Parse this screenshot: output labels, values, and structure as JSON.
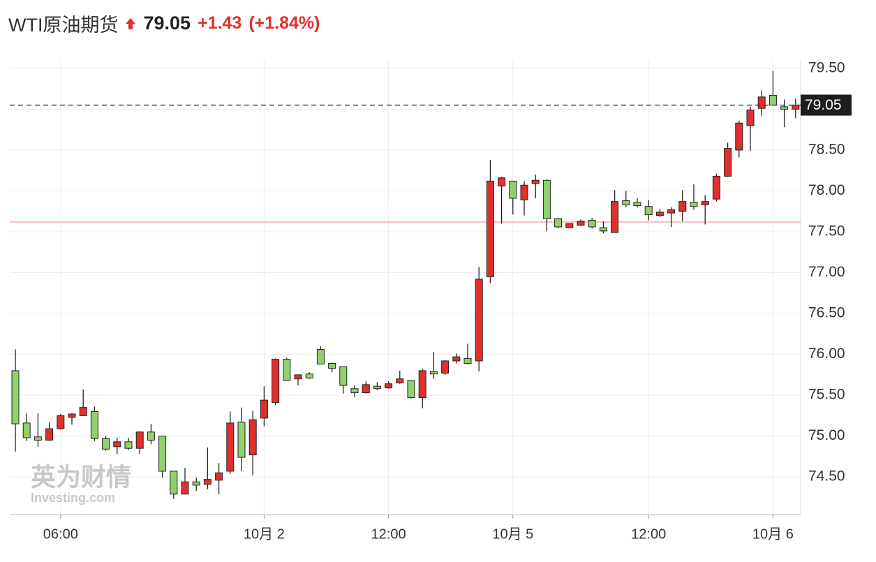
{
  "header": {
    "title": "WTI原油期货",
    "price": "79.05",
    "change": "+1.43",
    "change_pct": "(+1.84%)"
  },
  "watermark": {
    "cn": "英为财情",
    "en": "Investing.com"
  },
  "chart_data": {
    "type": "candlestick",
    "categories": [
      null,
      null,
      null,
      null,
      "06:00",
      null,
      null,
      null,
      null,
      null,
      null,
      null,
      null,
      null,
      null,
      null,
      null,
      null,
      null,
      null,
      null,
      null,
      "10月 2",
      null,
      null,
      null,
      null,
      null,
      null,
      null,
      null,
      null,
      null,
      "12:00",
      null,
      null,
      null,
      null,
      null,
      null,
      null,
      null,
      null,
      null,
      "10月 5",
      null,
      null,
      null,
      null,
      null,
      null,
      null,
      null,
      null,
      null,
      null,
      "12:00",
      null,
      null,
      null,
      null,
      null,
      null,
      null,
      null,
      null,
      null,
      "10月 6",
      null,
      null
    ],
    "open": [
      75.8,
      75.16,
      74.99,
      74.95,
      75.09,
      75.23,
      75.25,
      75.3,
      74.97,
      74.87,
      74.93,
      74.85,
      75.05,
      75.0,
      74.57,
      74.29,
      74.44,
      74.41,
      74.46,
      74.57,
      75.17,
      74.77,
      75.22,
      75.41,
      75.94,
      75.7,
      75.76,
      76.06,
      75.89,
      75.85,
      75.58,
      75.53,
      75.61,
      75.59,
      75.65,
      75.68,
      75.47,
      75.79,
      75.77,
      75.92,
      75.95,
      75.92,
      76.95,
      78.06,
      78.12,
      77.89,
      78.09,
      78.13,
      77.66,
      77.55,
      77.58,
      77.64,
      77.55,
      77.49,
      77.88,
      77.86,
      77.81,
      77.7,
      77.73,
      77.75,
      77.86,
      77.83,
      77.9,
      78.18,
      78.5,
      78.8,
      79.01,
      79.17,
      79.03,
      79.0
    ],
    "high": [
      76.06,
      75.28,
      75.28,
      75.17,
      75.27,
      75.28,
      75.57,
      75.36,
      75.0,
      74.98,
      74.98,
      75.06,
      75.15,
      75.0,
      74.57,
      74.61,
      74.49,
      74.86,
      74.67,
      75.3,
      75.35,
      75.31,
      75.61,
      75.95,
      75.96,
      75.75,
      75.78,
      76.1,
      75.9,
      75.85,
      75.62,
      75.67,
      75.66,
      75.67,
      75.8,
      75.68,
      75.82,
      76.03,
      75.93,
      76.01,
      76.13,
      77.07,
      78.38,
      78.17,
      78.12,
      78.12,
      78.2,
      78.14,
      77.67,
      77.6,
      77.65,
      77.67,
      77.63,
      78.01,
      78.0,
      77.91,
      77.89,
      77.78,
      77.8,
      78.01,
      78.08,
      77.95,
      78.21,
      78.59,
      78.86,
      79.03,
      79.23,
      79.47,
      79.12,
      79.13
    ],
    "low": [
      74.81,
      74.94,
      74.87,
      74.94,
      75.08,
      75.14,
      75.25,
      74.94,
      74.82,
      74.78,
      74.83,
      74.78,
      74.9,
      74.49,
      74.23,
      74.29,
      74.33,
      74.35,
      74.29,
      74.54,
      74.57,
      74.52,
      75.12,
      75.38,
      75.68,
      75.62,
      75.7,
      75.88,
      75.78,
      75.52,
      75.48,
      75.52,
      75.56,
      75.58,
      75.64,
      75.46,
      75.34,
      75.7,
      75.75,
      75.89,
      75.88,
      75.79,
      76.87,
      77.6,
      77.71,
      77.7,
      77.91,
      77.51,
      77.54,
      77.55,
      77.57,
      77.54,
      77.48,
      77.49,
      77.8,
      77.8,
      77.64,
      77.68,
      77.56,
      77.63,
      77.77,
      77.59,
      77.87,
      78.17,
      78.41,
      78.49,
      78.92,
      79.05,
      78.78,
      78.89
    ],
    "close": [
      75.15,
      74.98,
      74.95,
      75.09,
      75.25,
      75.27,
      75.35,
      74.97,
      74.84,
      74.93,
      74.85,
      75.05,
      74.95,
      74.57,
      74.29,
      74.44,
      74.4,
      74.47,
      74.55,
      75.16,
      74.74,
      75.2,
      75.44,
      75.94,
      75.68,
      75.75,
      75.71,
      75.88,
      75.83,
      75.62,
      75.53,
      75.63,
      75.58,
      75.64,
      75.7,
      75.47,
      75.8,
      75.76,
      75.92,
      75.97,
      75.89,
      76.92,
      78.12,
      78.16,
      77.91,
      78.07,
      78.13,
      77.66,
      77.56,
      77.6,
      77.63,
      77.56,
      77.51,
      77.87,
      77.83,
      77.82,
      77.71,
      77.74,
      77.77,
      77.87,
      77.81,
      77.87,
      78.18,
      78.52,
      78.83,
      78.99,
      79.15,
      79.05,
      79.0,
      79.05
    ],
    "up_color": "#e0302b",
    "down_color": "#8fd16a",
    "last_price": 79.05,
    "previous_close": 77.62,
    "ylim": [
      74.04,
      79.61
    ],
    "yticks": [
      {
        "value": 74.5,
        "label": "74.50"
      },
      {
        "value": 75,
        "label": "75.00"
      },
      {
        "value": 75.5,
        "label": "75.50"
      },
      {
        "value": 76,
        "label": "76.00"
      },
      {
        "value": 76.5,
        "label": "76.50"
      },
      {
        "value": 77,
        "label": "77.00"
      },
      {
        "value": 77.5,
        "label": "77.50"
      },
      {
        "value": 78,
        "label": "78.00"
      },
      {
        "value": 78.5,
        "label": "78.50"
      },
      {
        "value": 79,
        "label": "79.00"
      },
      {
        "value": 79.5,
        "label": "79.50"
      }
    ],
    "grid": true
  }
}
